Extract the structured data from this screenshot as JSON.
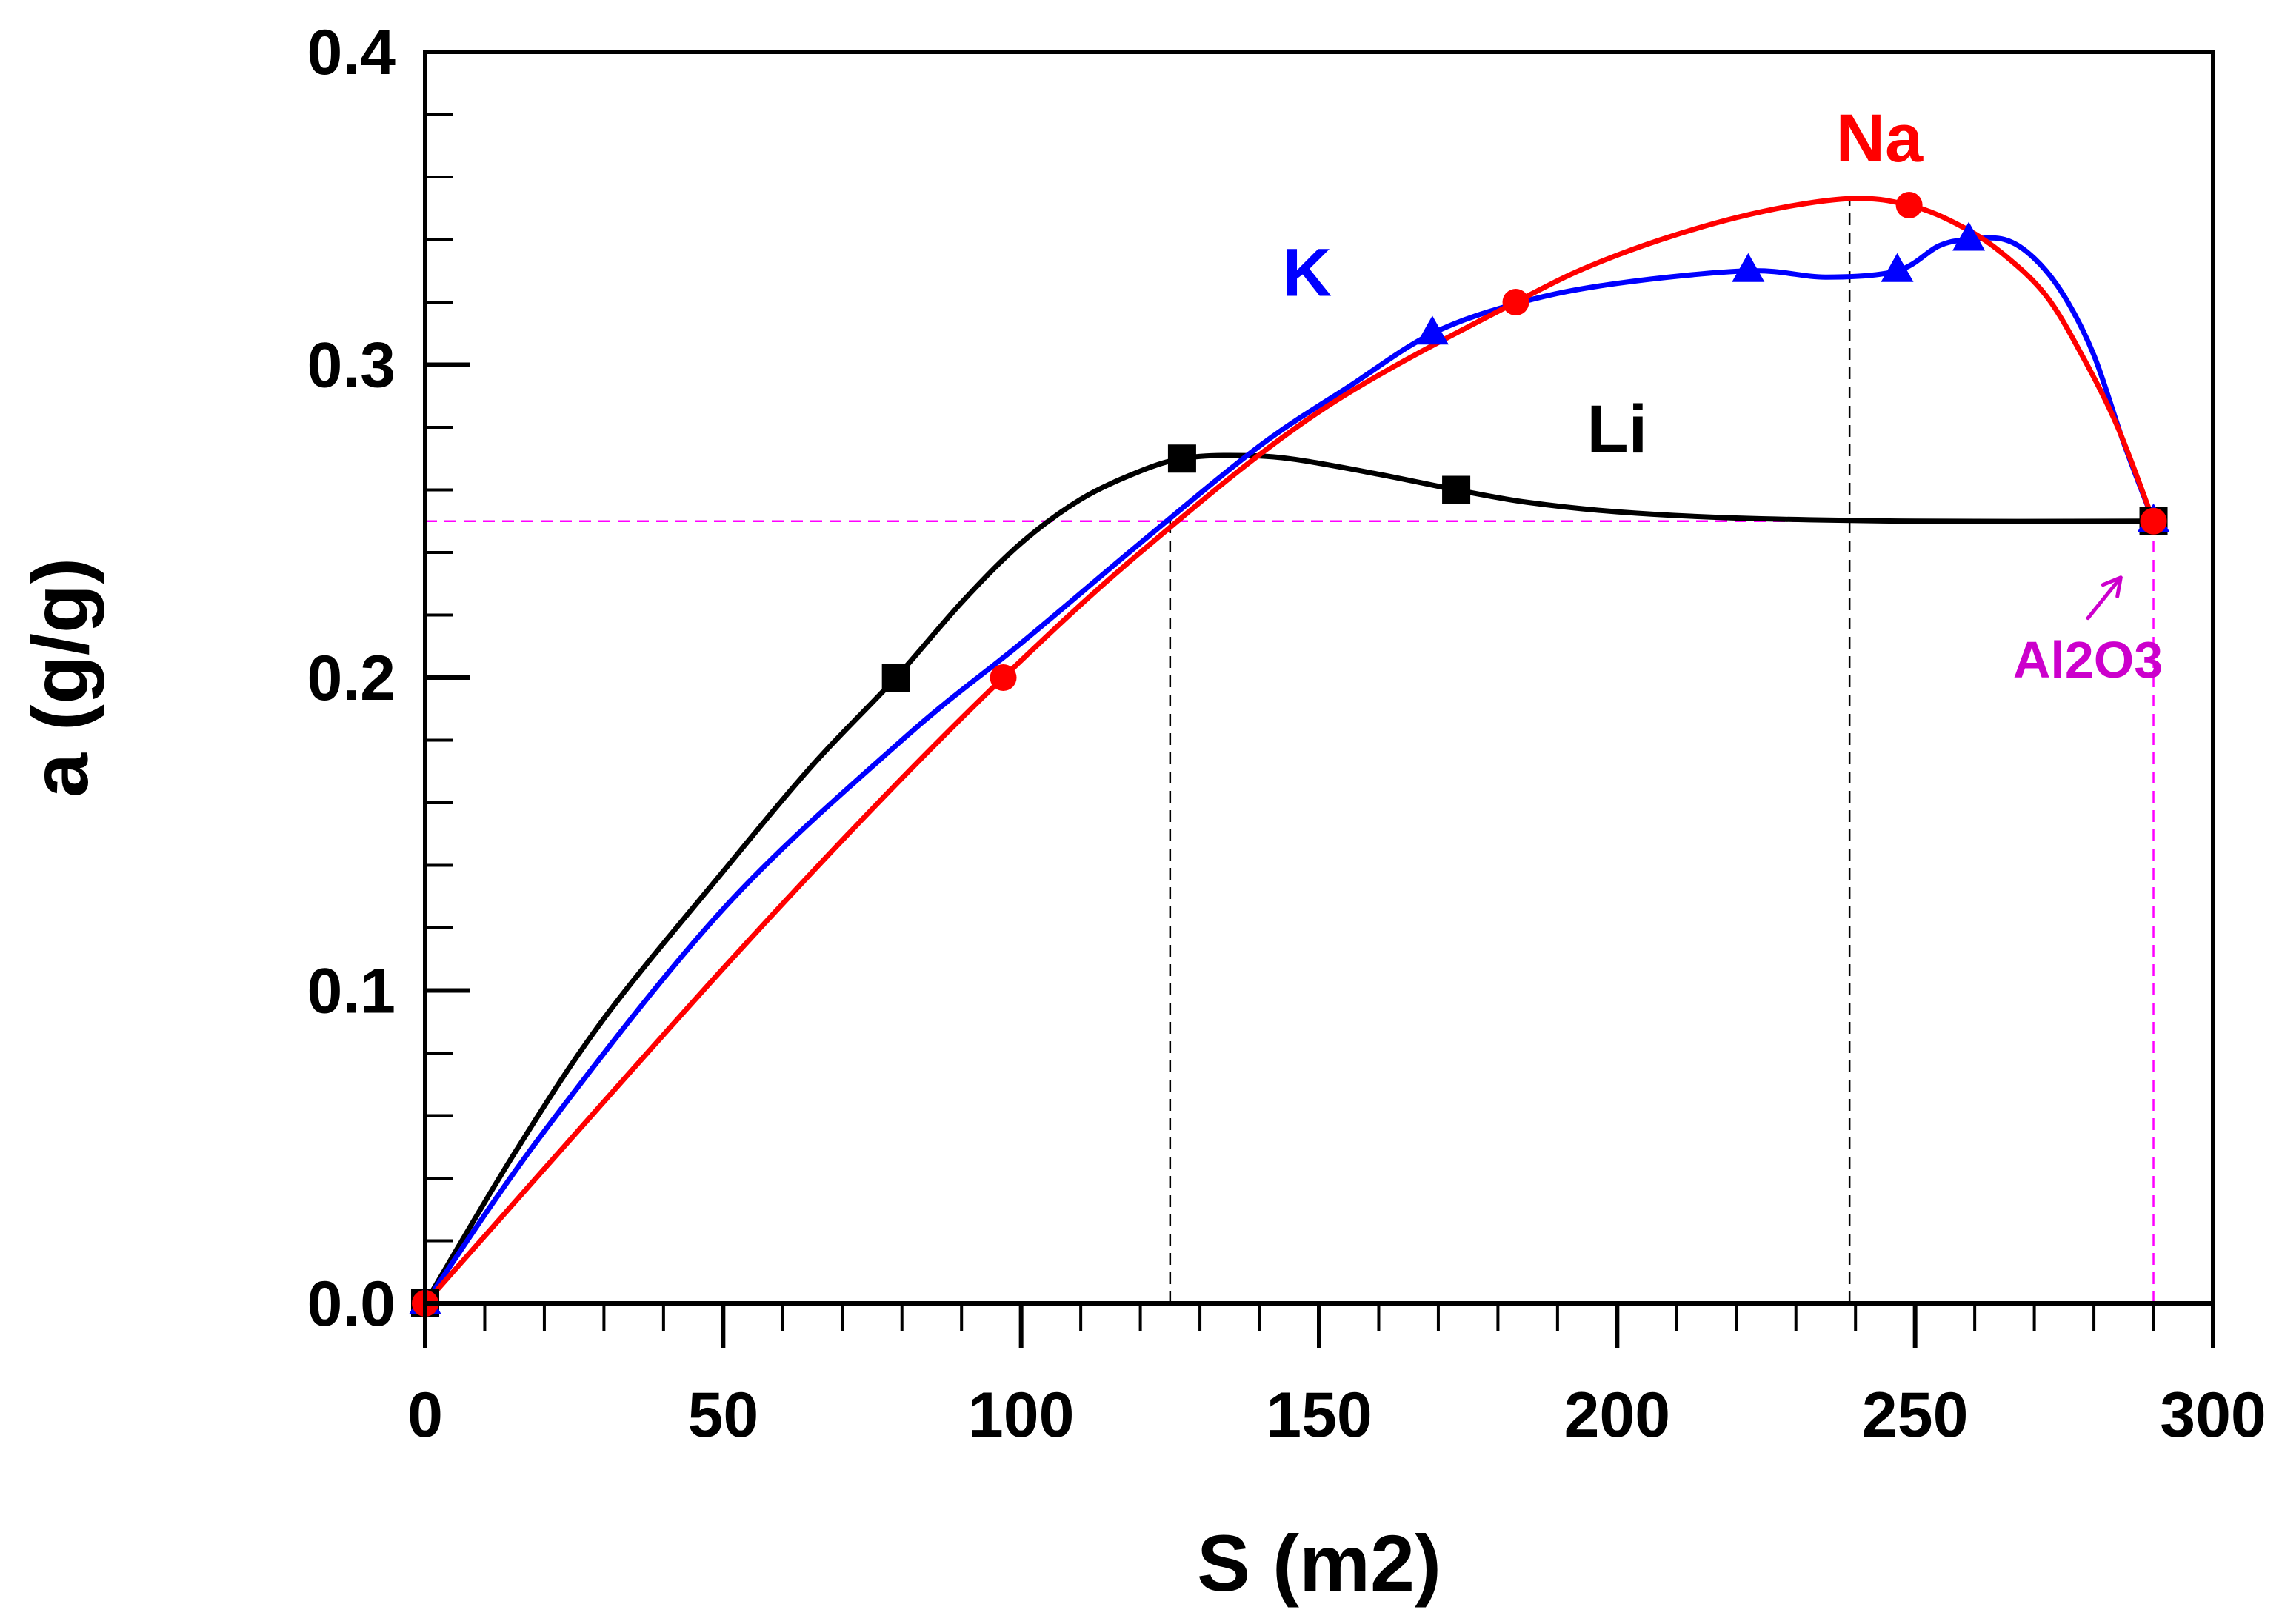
{
  "chart_data": {
    "type": "line",
    "title": "",
    "xlabel": "S (m2)",
    "ylabel": "a (g/g)",
    "xlim": [
      0,
      300
    ],
    "ylim": [
      0,
      0.4
    ],
    "x_ticks": [
      0,
      50,
      100,
      150,
      200,
      250,
      300
    ],
    "x_tick_labels": [
      "0",
      "50",
      "100",
      "150",
      "200",
      "250",
      "300"
    ],
    "y_ticks": [
      0,
      0.1,
      0.2,
      0.3,
      0.4
    ],
    "y_tick_labels": [
      "0.0",
      "0.1",
      "0.2",
      "0.3",
      "0.4"
    ],
    "grid": false,
    "legend": "none",
    "series": [
      {
        "name": "Li",
        "label": "Li",
        "color": "#000000",
        "marker": "square",
        "label_at": [
          200,
          0.272
        ],
        "points": [
          [
            0,
            0
          ],
          [
            79,
            0.2
          ],
          [
            127,
            0.27
          ],
          [
            173,
            0.26
          ],
          [
            290,
            0.25
          ]
        ],
        "curve": [
          [
            0,
            0
          ],
          [
            15,
            0.048
          ],
          [
            30,
            0.091
          ],
          [
            50,
            0.138
          ],
          [
            65,
            0.172
          ],
          [
            79,
            0.2
          ],
          [
            90,
            0.224
          ],
          [
            100,
            0.243
          ],
          [
            110,
            0.257
          ],
          [
            120,
            0.266
          ],
          [
            127,
            0.27
          ],
          [
            135,
            0.271
          ],
          [
            145,
            0.27
          ],
          [
            160,
            0.265
          ],
          [
            173,
            0.26
          ],
          [
            185,
            0.256
          ],
          [
            200,
            0.253
          ],
          [
            220,
            0.251
          ],
          [
            250,
            0.25
          ],
          [
            290,
            0.25
          ]
        ]
      },
      {
        "name": "K",
        "label": "K",
        "color": "#0000ff",
        "marker": "triangle",
        "label_at": [
          148,
          0.322
        ],
        "points": [
          [
            0,
            0
          ],
          [
            169,
            0.31
          ],
          [
            222,
            0.33
          ],
          [
            247,
            0.33
          ],
          [
            259,
            0.34
          ],
          [
            290,
            0.25
          ]
        ],
        "curve": [
          [
            0,
            0
          ],
          [
            20,
            0.055
          ],
          [
            50,
            0.126
          ],
          [
            80,
            0.18
          ],
          [
            100,
            0.211
          ],
          [
            120,
            0.243
          ],
          [
            140,
            0.274
          ],
          [
            155,
            0.293
          ],
          [
            169,
            0.31
          ],
          [
            184,
            0.32
          ],
          [
            200,
            0.326
          ],
          [
            222,
            0.33
          ],
          [
            235,
            0.328
          ],
          [
            247,
            0.33
          ],
          [
            254,
            0.338
          ],
          [
            259,
            0.34
          ],
          [
            265,
            0.34
          ],
          [
            270,
            0.334
          ],
          [
            275,
            0.322
          ],
          [
            280,
            0.303
          ],
          [
            285,
            0.275
          ],
          [
            290,
            0.25
          ]
        ]
      },
      {
        "name": "Na",
        "label": "Na",
        "color": "#ff0000",
        "marker": "circle",
        "label_at": [
          244,
          0.365
        ],
        "points": [
          [
            0,
            0
          ],
          [
            97,
            0.2
          ],
          [
            183,
            0.32
          ],
          [
            249,
            0.351
          ],
          [
            290,
            0.25
          ]
        ],
        "curve": [
          [
            0,
            0
          ],
          [
            20,
            0.043
          ],
          [
            50,
            0.107
          ],
          [
            75,
            0.158
          ],
          [
            97,
            0.2
          ],
          [
            120,
            0.24
          ],
          [
            150,
            0.285
          ],
          [
            183,
            0.32
          ],
          [
            200,
            0.335
          ],
          [
            220,
            0.347
          ],
          [
            238,
            0.353
          ],
          [
            249,
            0.351
          ],
          [
            258,
            0.344
          ],
          [
            265,
            0.335
          ],
          [
            272,
            0.322
          ],
          [
            278,
            0.303
          ],
          [
            284,
            0.28
          ],
          [
            290,
            0.25
          ]
        ]
      }
    ],
    "reference_lines": [
      {
        "type": "horizontal",
        "y": 0.25,
        "x_from": 0,
        "x_to": 290,
        "color": "#ff00ff",
        "style": "dashed"
      },
      {
        "type": "vertical",
        "x": 290,
        "y_from": 0,
        "y_to": 0.25,
        "color": "#ff00ff",
        "style": "dashed"
      },
      {
        "type": "vertical",
        "x": 125,
        "y_from": 0,
        "y_to": 0.25,
        "color": "#000000",
        "style": "dashed"
      },
      {
        "type": "vertical",
        "x": 239,
        "y_from": 0,
        "y_to": 0.354,
        "color": "#000000",
        "style": "dashed"
      }
    ],
    "annotations": [
      {
        "text": "Al2O3",
        "color": "#cc00cc",
        "at": [
          279,
          0.2
        ],
        "arrow_from": [
          279,
          0.219
        ],
        "arrow_to": [
          284.5,
          0.232
        ]
      }
    ]
  }
}
